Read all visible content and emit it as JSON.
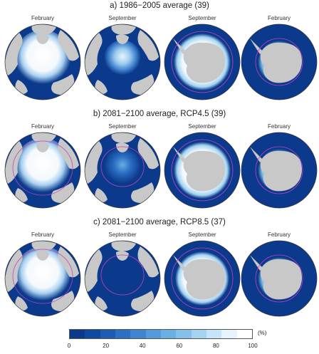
{
  "panels": [
    {
      "title": "a) 1986−2005 average (39)",
      "months": [
        "February",
        "September",
        "September",
        "February"
      ]
    },
    {
      "title": "b) 2081−2100 average, RCP4.5 (39)",
      "months": [
        "February",
        "September",
        "September",
        "February"
      ]
    },
    {
      "title": "c) 2081−2100 average, RCP8.5 (37)",
      "months": [
        "February",
        "September",
        "September",
        "February"
      ]
    }
  ],
  "maps": [
    {
      "pole": "arctic",
      "month": "February",
      "ice_extent": 0.9
    },
    {
      "pole": "arctic",
      "month": "September",
      "ice_extent": 0.45
    },
    {
      "pole": "antarctic",
      "month": "September",
      "ice_extent": 0.9
    },
    {
      "pole": "antarctic",
      "month": "February",
      "ice_extent": 0.2
    }
  ],
  "colorbar": {
    "unit": "(%)",
    "ticks": [
      "0",
      "20",
      "40",
      "60",
      "80",
      "100"
    ],
    "colors": [
      "#0b3a8c",
      "#0f4aa0",
      "#1c5cb4",
      "#2c6fc4",
      "#3f84d0",
      "#5499db",
      "#6aaee3",
      "#84c1ea",
      "#a3d3f1",
      "#c6e4f7",
      "#e6f3fc",
      "#ffffff"
    ]
  },
  "colors": {
    "ocean": "#0b3a8c",
    "land": "#c8c8c8",
    "ice": "#ffffff",
    "contour": "#c040c0"
  }
}
